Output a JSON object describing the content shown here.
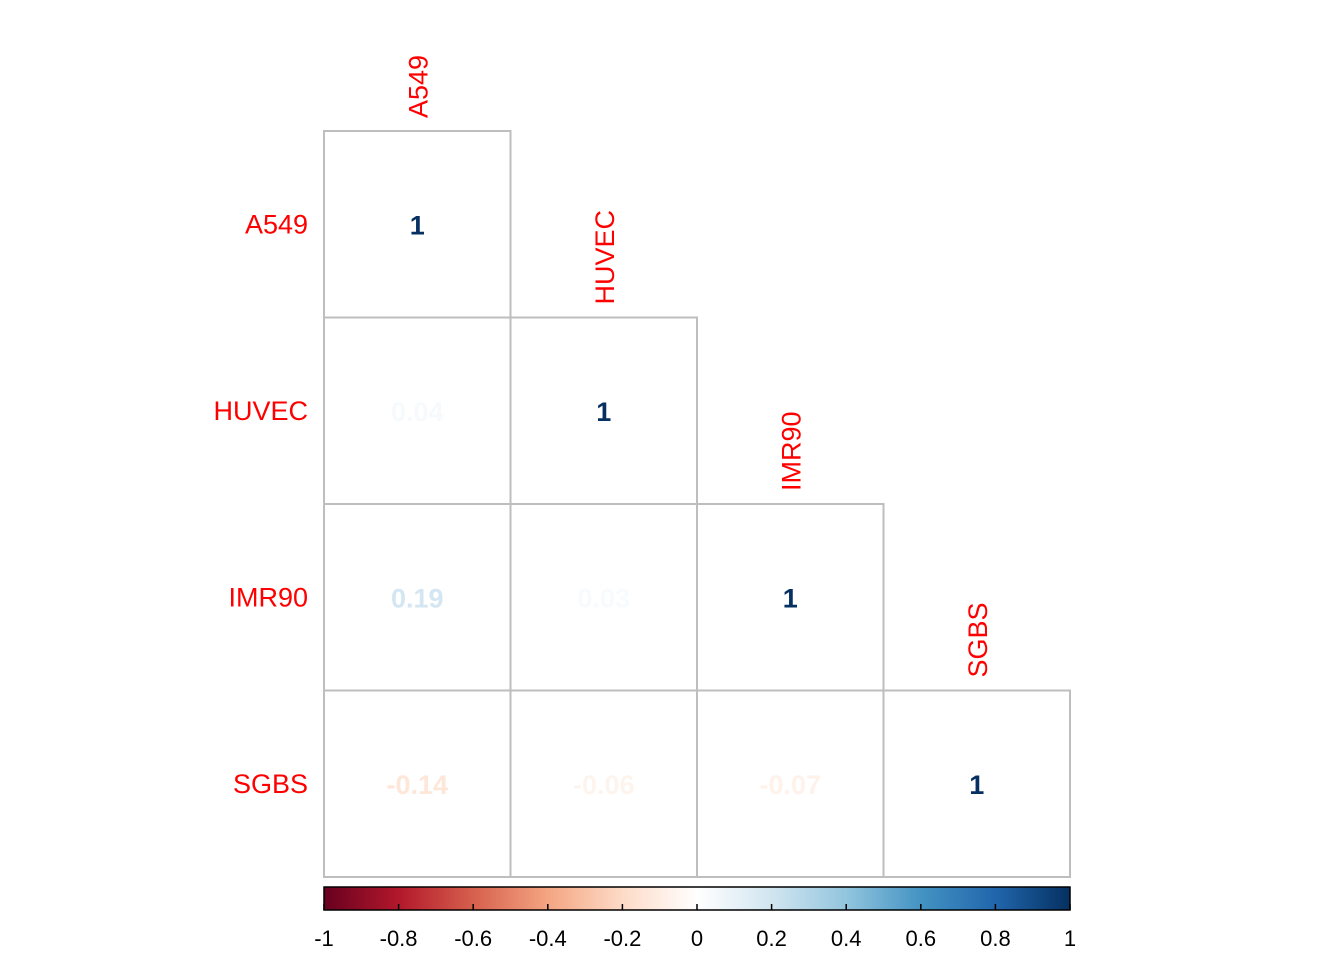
{
  "chart_data": {
    "type": "heatmap",
    "layout": "lower-triangle",
    "variables": [
      "A549",
      "HUVEC",
      "IMR90",
      "SGBS"
    ],
    "matrix": [
      [
        1,
        null,
        null,
        null
      ],
      [
        0.04,
        1,
        null,
        null
      ],
      [
        0.19,
        0.03,
        1,
        null
      ],
      [
        -0.14,
        -0.06,
        -0.07,
        1
      ]
    ],
    "value_labels": [
      [
        "1",
        "",
        "",
        ""
      ],
      [
        "0.04",
        "1",
        "",
        ""
      ],
      [
        "0.19",
        "0.03",
        "1",
        ""
      ],
      [
        "-0.14",
        "-0.06",
        "-0.07",
        "1"
      ]
    ],
    "label_color": "#ff0000",
    "colorbar": {
      "range": [
        -1,
        1
      ],
      "ticks": [
        "-1",
        "-0.8",
        "-0.6",
        "-0.4",
        "-0.2",
        "0",
        "0.2",
        "0.4",
        "0.6",
        "0.8",
        "1"
      ],
      "palette": [
        "#67001F",
        "#B2182B",
        "#D6604D",
        "#F4A582",
        "#FDDBC7",
        "#FFFFFF",
        "#D1E5F0",
        "#92C5DE",
        "#4393C3",
        "#2166AC",
        "#053061"
      ]
    },
    "grid": true,
    "legend": "bottom"
  }
}
